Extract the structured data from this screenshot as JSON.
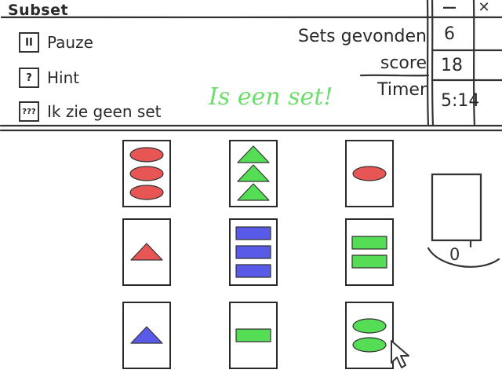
{
  "window": {
    "title": "Subset",
    "minimize_label": "—",
    "close_label": "✕"
  },
  "controls": [
    {
      "icon_text": "II",
      "icon_name": "pause-icon",
      "label": "Pauze"
    },
    {
      "icon_text": "?",
      "icon_name": "hint-icon",
      "label": "Hint"
    },
    {
      "icon_text": "???",
      "icon_name": "no-set-icon",
      "label": "Ik zie geen set"
    }
  ],
  "stats": {
    "sets_found_label": "Sets gevonden",
    "sets_found_value": "6",
    "score_label": "score",
    "score_value": "18",
    "timer_label": "Timer",
    "timer_value": "5:14"
  },
  "message": "Is een set!",
  "colors": {
    "red": "#e85555",
    "green": "#55dd55",
    "blue": "#5a5ae8",
    "message_green": "#6fdc6f"
  },
  "cards": [
    {
      "shape": "oval",
      "color": "red",
      "count": 3
    },
    {
      "shape": "triangle",
      "color": "green",
      "count": 3
    },
    {
      "shape": "oval",
      "color": "red",
      "count": 1
    },
    {
      "shape": "triangle",
      "color": "red",
      "count": 1
    },
    {
      "shape": "rectangle",
      "color": "blue",
      "count": 3
    },
    {
      "shape": "rectangle",
      "color": "green",
      "count": 2
    },
    {
      "shape": "triangle",
      "color": "blue",
      "count": 1
    },
    {
      "shape": "rectangle",
      "color": "green",
      "count": 1
    },
    {
      "shape": "oval",
      "color": "green",
      "count": 2
    }
  ],
  "selected_count": "0",
  "cursor_icon": "arrow-cursor-icon"
}
